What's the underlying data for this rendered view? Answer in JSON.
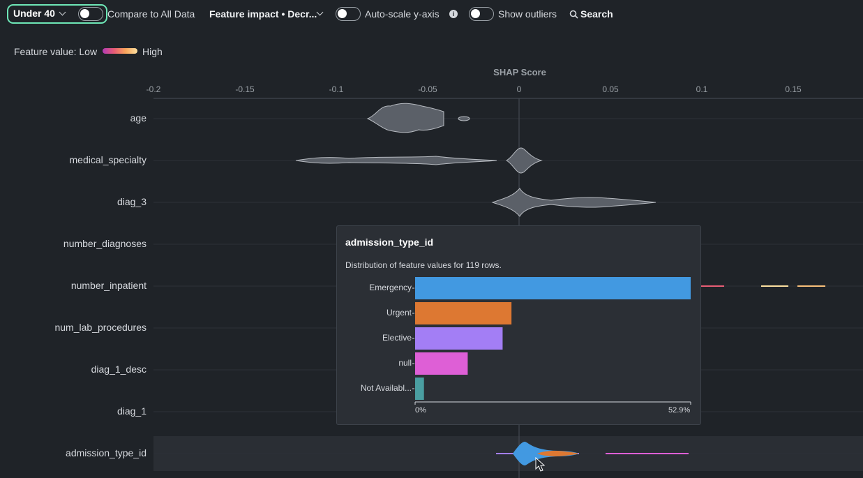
{
  "toolbar": {
    "segment_label": "Under 40",
    "compare_label": "Compare to All Data",
    "sort_label": "Feature impact • Decr...",
    "autoscale_label": "Auto-scale y-axis",
    "outliers_label": "Show outliers",
    "search_label": "Search"
  },
  "legend": {
    "prefix": "Feature value: Low",
    "suffix": "High"
  },
  "axis": {
    "title": "SHAP Score",
    "ticks": [
      "-0.2",
      "-0.15",
      "-0.1",
      "-0.05",
      "0",
      "0.05",
      "0.1",
      "0.15"
    ]
  },
  "features": [
    "age",
    "medical_specialty",
    "diag_3",
    "number_diagnoses",
    "number_inpatient",
    "num_lab_procedures",
    "diag_1_desc",
    "diag_1",
    "admission_type_id"
  ],
  "popup": {
    "title": "admission_type_id",
    "subtitle": "Distribution of feature values for 119 rows.",
    "min_label": "0%",
    "max_label": "52.9%"
  },
  "chart_data": {
    "type": "bar",
    "title": "admission_type_id",
    "categories": [
      "Emergency",
      "Urgent",
      "Elective",
      "null",
      "Not Availabl..."
    ],
    "values": [
      52.9,
      18.5,
      16.8,
      10.1,
      1.7
    ],
    "colors": [
      "#4299e1",
      "#dd7832",
      "#a37ef5",
      "#de5fd6",
      "#4a9ea1"
    ],
    "xlim": [
      0,
      52.9
    ]
  },
  "colors": {
    "accent": "#6ee7b7",
    "background": "#1f2328"
  }
}
